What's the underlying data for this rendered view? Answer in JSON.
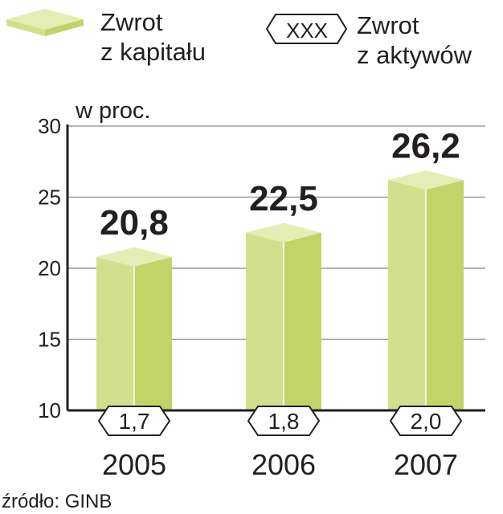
{
  "legend": {
    "equity_label_line1": "Zwrot",
    "equity_label_line2": "z kapitału",
    "assets_box_text": "XXX",
    "assets_label_line1": "Zwrot",
    "assets_label_line2": "z aktywów"
  },
  "source": "źródło: GINB",
  "colors": {
    "bar_front": "#d2e08e",
    "bar_side": "#c2d468",
    "bar_top": "#e4edb4",
    "grid": "#9a9a9a",
    "axis": "#231f20",
    "text": "#231f20"
  },
  "chart_data": {
    "type": "bar",
    "categories": [
      "2005",
      "2006",
      "2007"
    ],
    "series": [
      {
        "name": "Zwrot z kapitału",
        "values": [
          20.8,
          22.5,
          26.2
        ],
        "labels": [
          "20,8",
          "22,5",
          "26,2"
        ]
      },
      {
        "name": "Zwrot z aktywów",
        "values": [
          1.7,
          1.8,
          2.0
        ],
        "labels": [
          "1,7",
          "1,8",
          "2,0"
        ]
      }
    ],
    "ylabel": "w proc.",
    "ylim": [
      10,
      30
    ],
    "yticks": [
      10,
      15,
      20,
      25,
      30
    ],
    "grid": true,
    "legend_position": "top"
  }
}
